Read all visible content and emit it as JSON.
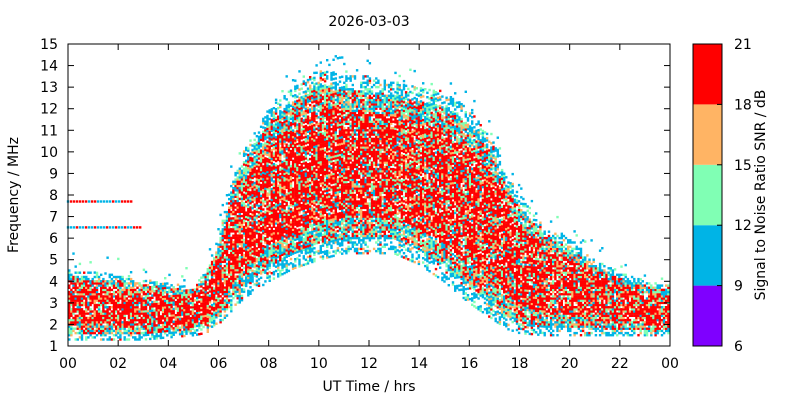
{
  "chart_data": {
    "type": "heatmap",
    "title": "2026-03-03",
    "xlabel": "UT Time / hrs",
    "ylabel": "Frequency / MHz",
    "xlim": [
      0,
      24
    ],
    "ylim": [
      1,
      15
    ],
    "x_ticks": [
      "00",
      "02",
      "04",
      "06",
      "08",
      "10",
      "12",
      "14",
      "16",
      "18",
      "20",
      "22",
      "00"
    ],
    "y_ticks": [
      "1",
      "2",
      "3",
      "4",
      "5",
      "6",
      "7",
      "8",
      "9",
      "10",
      "11",
      "12",
      "13",
      "14",
      "15"
    ],
    "colorbar": {
      "label": "Signal to Noise Ratio SNR / dB",
      "ticks": [
        "6",
        "9",
        "12",
        "15",
        "18",
        "21"
      ],
      "bins": [
        {
          "min": 6,
          "max": 9,
          "color": "#7f00ff"
        },
        {
          "min": 9,
          "max": 12,
          "color": "#00b4e6"
        },
        {
          "min": 12,
          "max": 15,
          "color": "#80ffb4"
        },
        {
          "min": 15,
          "max": 18,
          "color": "#ffb464"
        },
        {
          "min": 18,
          "max": 21,
          "color": "#ff0000"
        }
      ]
    },
    "grid": false,
    "profile": {
      "description": "approximate frequency envelope of observed soundings vs UT hour (data units)",
      "hour": [
        0,
        1,
        2,
        3,
        4,
        5,
        5.5,
        6,
        6.5,
        7,
        8,
        9,
        10,
        11,
        12,
        13,
        14,
        15,
        16,
        17,
        17.5,
        18,
        19,
        20,
        21,
        22,
        23,
        24
      ],
      "f_low": [
        1.3,
        1.3,
        1.3,
        1.3,
        1.4,
        1.5,
        1.6,
        2.0,
        2.6,
        3.2,
        4.0,
        4.6,
        5.0,
        5.3,
        5.3,
        5.3,
        4.8,
        4.0,
        3.0,
        2.2,
        1.8,
        1.6,
        1.5,
        1.5,
        1.5,
        1.5,
        1.5,
        1.5
      ],
      "f_high": [
        4.6,
        4.4,
        4.3,
        4.1,
        3.9,
        3.8,
        4.5,
        6.0,
        8.5,
        10.0,
        12.0,
        13.0,
        13.8,
        13.6,
        13.5,
        13.2,
        13.0,
        12.8,
        12.0,
        10.5,
        9.0,
        8.0,
        6.5,
        6.0,
        5.0,
        4.4,
        4.0,
        3.8
      ]
    },
    "spurious_bands": [
      {
        "x_from": 0,
        "x_to": 2.6,
        "freq": 7.7
      },
      {
        "x_from": 0,
        "x_to": 3.0,
        "freq": 6.5
      }
    ]
  }
}
